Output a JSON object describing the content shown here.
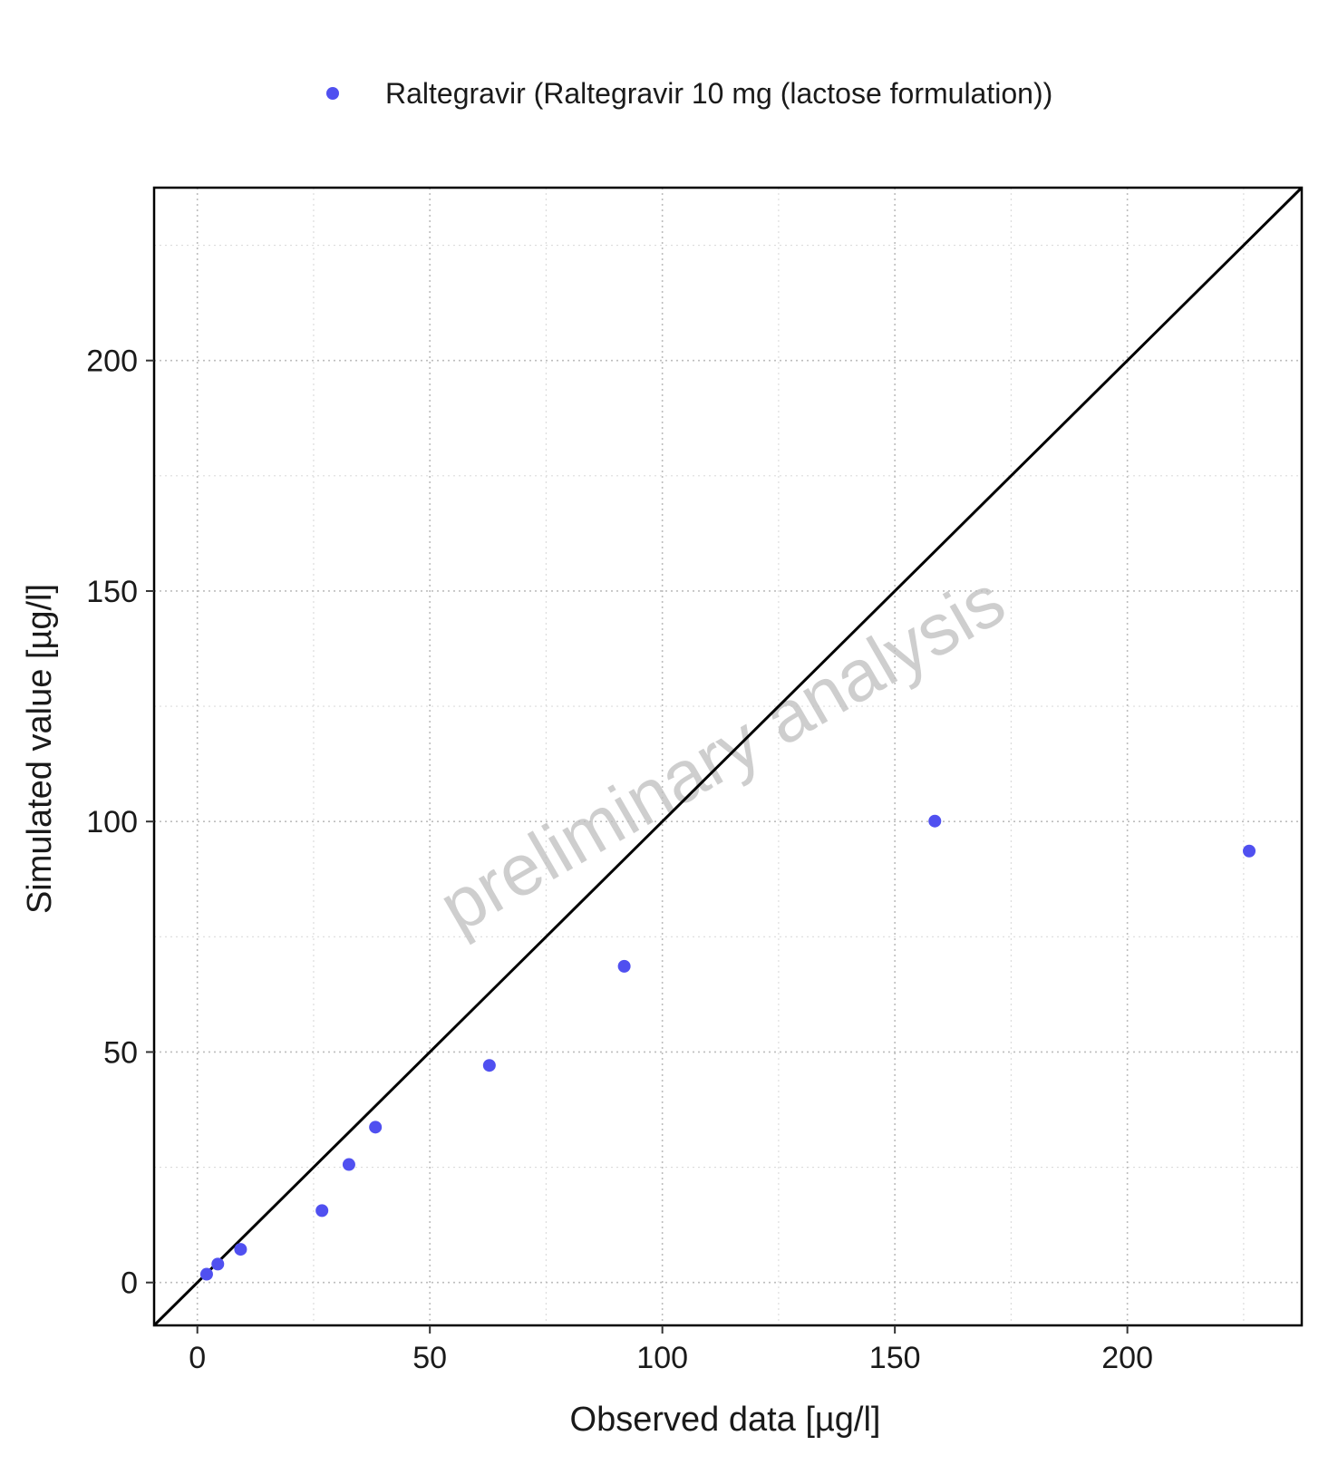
{
  "chart_data": {
    "type": "scatter",
    "xlabel": "Observed data [µg/l]",
    "ylabel": "Simulated value [µg/l]",
    "xlim": [
      -9.3,
      237.5
    ],
    "ylim": [
      -9.3,
      237.5
    ],
    "x_ticks": [
      0,
      50,
      100,
      150,
      200
    ],
    "y_ticks": [
      0,
      50,
      100,
      150,
      200
    ],
    "x_tick_labels": [
      "0",
      "50",
      "100",
      "150",
      "200"
    ],
    "y_tick_labels": [
      "0",
      "50",
      "100",
      "150",
      "200"
    ],
    "grid": true,
    "identity_line": true,
    "legend_position": "top",
    "watermark": "preliminary analysis",
    "series": [
      {
        "name": "Raltegravir (Raltegravir 10 mg (lactose formulation))",
        "color": "#5050F0",
        "points": [
          {
            "x": 2.0,
            "y": 1.8
          },
          {
            "x": 4.4,
            "y": 4.0
          },
          {
            "x": 9.3,
            "y": 7.2
          },
          {
            "x": 26.8,
            "y": 15.6
          },
          {
            "x": 32.6,
            "y": 25.6
          },
          {
            "x": 38.3,
            "y": 33.7
          },
          {
            "x": 62.8,
            "y": 47.1
          },
          {
            "x": 91.8,
            "y": 68.6
          },
          {
            "x": 158.6,
            "y": 100.1
          },
          {
            "x": 226.2,
            "y": 93.6
          }
        ]
      }
    ]
  }
}
